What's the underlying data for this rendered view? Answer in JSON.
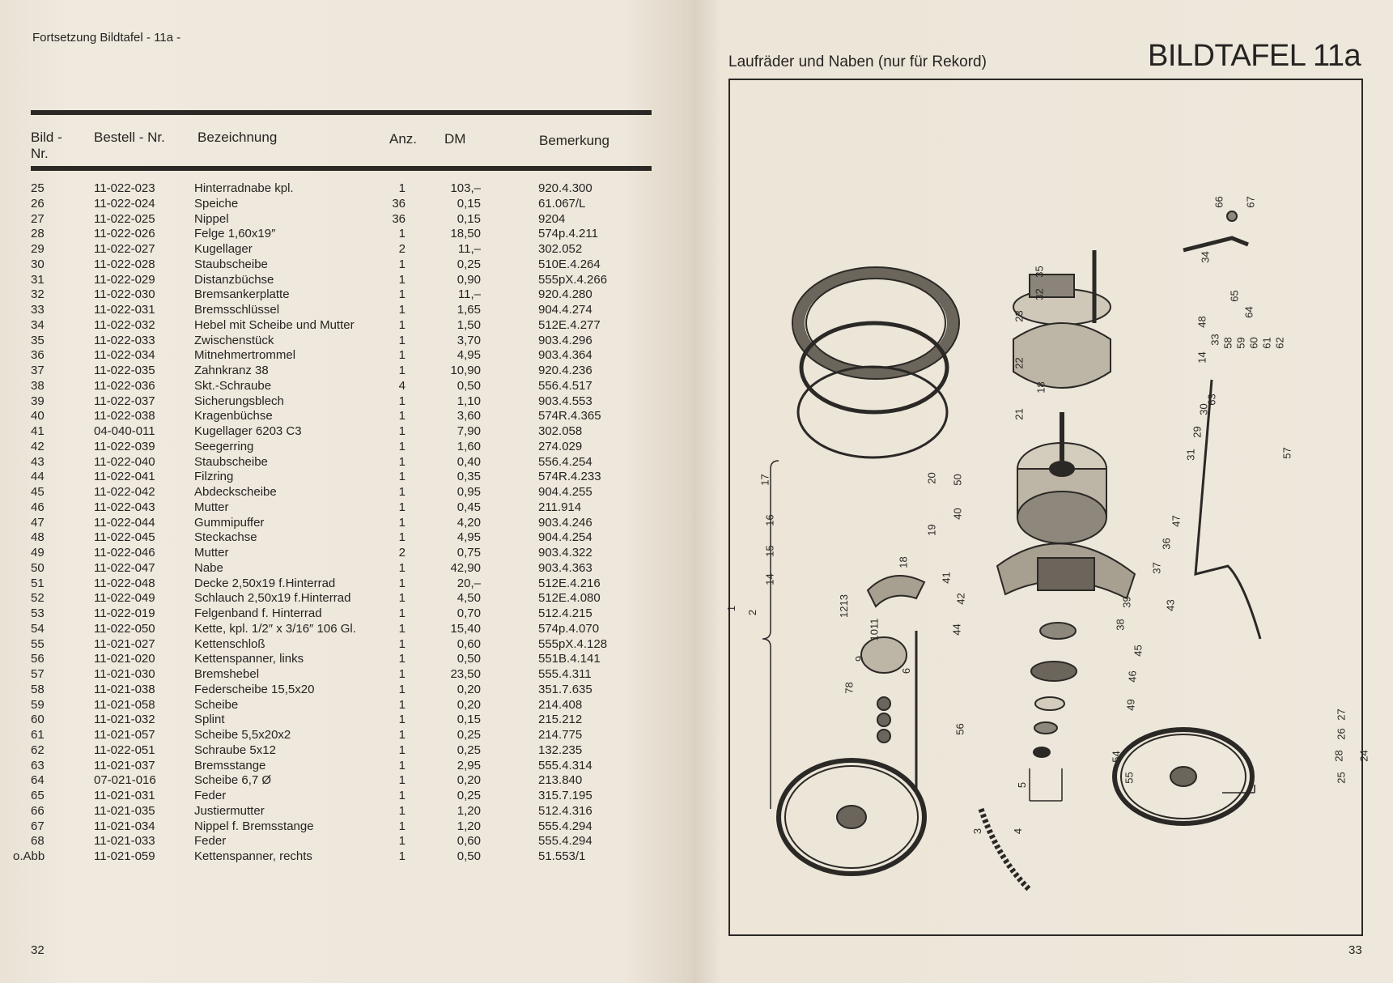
{
  "left_page": {
    "header": "Fortsetzung Bildtafel - 11a -",
    "page_number": "32",
    "table": {
      "columns": [
        "Bild -\nNr.",
        "Bestell - Nr.",
        "Bezeichnung",
        "Anz.",
        "DM",
        "Bemerkung"
      ],
      "col_bild": "Bild -",
      "col_bild2": "Nr.",
      "col_bestell": "Bestell - Nr.",
      "col_bez": "Bezeichnung",
      "col_anz": "Anz.",
      "col_dm": "DM",
      "col_bem": "Bemerkung",
      "rows": [
        [
          "25",
          "11-022-023",
          "Hinterradnabe kpl.",
          "1",
          "103,–",
          "920.4.300"
        ],
        [
          "26",
          "11-022-024",
          "Speiche",
          "36",
          "0,15",
          "61.067/L"
        ],
        [
          "27",
          "11-022-025",
          "Nippel",
          "36",
          "0,15",
          "9204"
        ],
        [
          "28",
          "11-022-026",
          "Felge 1,60x19″",
          "1",
          "18,50",
          "574p.4.211"
        ],
        [
          "29",
          "11-022-027",
          "Kugellager",
          "2",
          "11,–",
          "302.052"
        ],
        [
          "30",
          "11-022-028",
          "Staubscheibe",
          "1",
          "0,25",
          "510E.4.264"
        ],
        [
          "31",
          "11-022-029",
          "Distanzbüchse",
          "1",
          "0,90",
          "555pX.4.266"
        ],
        [
          "32",
          "11-022-030",
          "Bremsankerplatte",
          "1",
          "11,–",
          "920.4.280"
        ],
        [
          "33",
          "11-022-031",
          "Bremsschlüssel",
          "1",
          "1,65",
          "904.4.274"
        ],
        [
          "34",
          "11-022-032",
          "Hebel mit Scheibe und Mutter",
          "1",
          "1,50",
          "512E.4.277"
        ],
        [
          "35",
          "11-022-033",
          "Zwischenstück",
          "1",
          "3,70",
          "903.4.296"
        ],
        [
          "36",
          "11-022-034",
          "Mitnehmertrommel",
          "1",
          "4,95",
          "903.4.364"
        ],
        [
          "37",
          "11-022-035",
          "Zahnkranz 38",
          "1",
          "10,90",
          "920.4.236"
        ],
        [
          "38",
          "11-022-036",
          "Skt.-Schraube",
          "4",
          "0,50",
          "556.4.517"
        ],
        [
          "39",
          "11-022-037",
          "Sicherungsblech",
          "1",
          "1,10",
          "903.4.553"
        ],
        [
          "40",
          "11-022-038",
          "Kragenbüchse",
          "1",
          "3,60",
          "574R.4.365"
        ],
        [
          "41",
          "04-040-011",
          "Kugellager  6203 C3",
          "1",
          "7,90",
          "302.058"
        ],
        [
          "42",
          "11-022-039",
          "Seegerring",
          "1",
          "1,60",
          "274.029"
        ],
        [
          "43",
          "11-022-040",
          "Staubscheibe",
          "1",
          "0,40",
          "556.4.254"
        ],
        [
          "44",
          "11-022-041",
          "Filzring",
          "1",
          "0,35",
          "574R.4.233"
        ],
        [
          "45",
          "11-022-042",
          "Abdeckscheibe",
          "1",
          "0,95",
          "904.4.255"
        ],
        [
          "46",
          "11-022-043",
          "Mutter",
          "1",
          "0,45",
          "211.914"
        ],
        [
          "47",
          "11-022-044",
          "Gummipuffer",
          "1",
          "4,20",
          "903.4.246"
        ],
        [
          "48",
          "11-022-045",
          "Steckachse",
          "1",
          "4,95",
          "904.4.254"
        ],
        [
          "49",
          "11-022-046",
          "Mutter",
          "2",
          "0,75",
          "903.4.322"
        ],
        [
          "50",
          "11-022-047",
          "Nabe",
          "1",
          "42,90",
          "903.4.363"
        ],
        [
          "51",
          "11-022-048",
          "Decke 2,50x19 f.Hinterrad",
          "1",
          "20,–",
          "512E.4.216"
        ],
        [
          "52",
          "11-022-049",
          "Schlauch 2,50x19 f.Hinterrad",
          "1",
          "4,50",
          "512E.4.080"
        ],
        [
          "53",
          "11-022-019",
          "Felgenband f. Hinterrad",
          "1",
          "0,70",
          "512.4.215"
        ],
        [
          "54",
          "11-022-050",
          "Kette, kpl. 1/2″ x 3/16″ 106 Gl.",
          "1",
          "15,40",
          "574p.4.070"
        ],
        [
          "55",
          "11-021-027",
          "Kettenschloß",
          "1",
          "0,60",
          "555pX.4.128"
        ],
        [
          "56",
          "11-021-020",
          "Kettenspanner, links",
          "1",
          "0,50",
          "551B.4.141"
        ],
        [
          "57",
          "11-021-030",
          "Bremshebel",
          "1",
          "23,50",
          "555.4.311"
        ],
        [
          "58",
          "11-021-038",
          "Federscheibe 15,5x20",
          "1",
          "0,20",
          "351.7.635"
        ],
        [
          "59",
          "11-021-058",
          "Scheibe",
          "1",
          "0,20",
          "214.408"
        ],
        [
          "60",
          "11-021-032",
          "Splint",
          "1",
          "0,15",
          "215.212"
        ],
        [
          "61",
          "11-021-057",
          "Scheibe 5,5x20x2",
          "1",
          "0,25",
          "214.775"
        ],
        [
          "62",
          "11-022-051",
          "Schraube 5x12",
          "1",
          "0,25",
          "132.235"
        ],
        [
          "63",
          "11-021-037",
          "Bremsstange",
          "1",
          "2,95",
          "555.4.314"
        ],
        [
          "64",
          "07-021-016",
          "Scheibe 6,7  Ø",
          "1",
          "0,20",
          "213.840"
        ],
        [
          "65",
          "11-021-031",
          "Feder",
          "1",
          "0,25",
          "315.7.195"
        ],
        [
          "66",
          "11-021-035",
          "Justiermutter",
          "1",
          "1,20",
          "512.4.316"
        ],
        [
          "67",
          "11-021-034",
          "Nippel f. Bremsstange",
          "1",
          "1,20",
          "555.4.294"
        ],
        [
          "68",
          "11-021-033",
          "Feder",
          "1",
          "0,60",
          "555.4.294"
        ],
        [
          "o.Abb",
          "11-021-059",
          "Kettenspanner, rechts",
          "1",
          "0,50",
          "51.553/1"
        ]
      ]
    }
  },
  "right_page": {
    "subtitle": "Laufräder und Naben (nur für Rekord)",
    "plate_title": "BILDTAFEL 11a",
    "page_number": "33",
    "diagram_labels": [
      "66",
      "67",
      "34",
      "35",
      "32",
      "23",
      "48",
      "33",
      "14",
      "22",
      "18",
      "21",
      "30",
      "29",
      "31",
      "65",
      "64",
      "58",
      "59",
      "60",
      "61",
      "62",
      "63",
      "57",
      "17",
      "20",
      "50",
      "16",
      "40",
      "19",
      "47",
      "36",
      "15",
      "18",
      "37",
      "14",
      "41",
      "42",
      "39",
      "43",
      "1",
      "2",
      "1213",
      "1011",
      "44",
      "38",
      "9",
      "45",
      "6",
      "78",
      "46",
      "49",
      "56",
      "27",
      "26",
      "28",
      "24",
      "54",
      "25",
      "55",
      "5",
      "3",
      "4"
    ]
  }
}
